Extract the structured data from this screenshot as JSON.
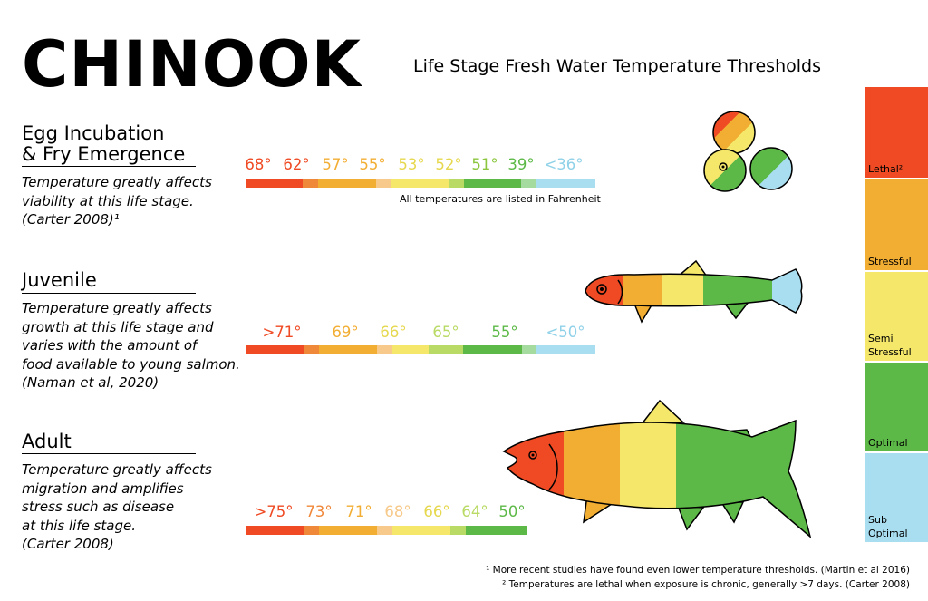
{
  "title": "CHINOOK",
  "subtitle": "Life Stage Fresh Water Temperature Thresholds",
  "colors": {
    "lethal": "#ef4a23",
    "lethal_stressful": "#f0883a",
    "stressful": "#f2ae33",
    "stressful_semi": "#f7c98a",
    "semi_stressful": "#f4e76a",
    "semi_optimal": "#b9da64",
    "optimal": "#5db947",
    "optimal_sub": "#a6dba0",
    "sub_optimal": "#a8def0"
  },
  "stages": [
    {
      "title_line1": "Egg Incubation",
      "title_line2": "& Fry Emergence",
      "desc": [
        "Temperature greatly affects",
        "viability at this life stage.",
        "(Carter 2008)¹"
      ],
      "temps": [
        "68°",
        "62°",
        "57°",
        "55°",
        "53°",
        "52°",
        "51°",
        "39°",
        "<36°"
      ],
      "icon": "salmon-eggs-illustration"
    },
    {
      "title": "Juvenile",
      "desc": [
        "Temperature greatly affects",
        "growth at this life stage and",
        "varies with the amount of",
        "food available to young salmon.",
        "(Naman et al, 2020)"
      ],
      "temps": [
        ">71°",
        "69°",
        "66°",
        "65°",
        "55°",
        "<50°"
      ],
      "icon": "juvenile-salmon-illustration"
    },
    {
      "title": "Adult",
      "desc": [
        "Temperature greatly affects",
        "migration and amplifies",
        "stress such as disease",
        "at this life stage.",
        "(Carter 2008)"
      ],
      "temps": [
        ">75°",
        "73°",
        "71°",
        "68°",
        "66°",
        "64°",
        "50°"
      ],
      "icon": "adult-salmon-illustration"
    }
  ],
  "note": "All temperatures are listed in Fahrenheit",
  "legend": [
    {
      "label": "Lethal²"
    },
    {
      "label": "Stressful"
    },
    {
      "label_line1": "Semi",
      "label_line2": "Stressful"
    },
    {
      "label": "Optimal"
    },
    {
      "label_line1": "Sub",
      "label_line2": "Optimal"
    }
  ],
  "footnotes": [
    "¹ More recent studies have found even lower temperature thresholds. (Martin et al 2016)",
    "² Temperatures are lethal when exposure is chronic, generally >7 days. (Carter 2008)"
  ]
}
